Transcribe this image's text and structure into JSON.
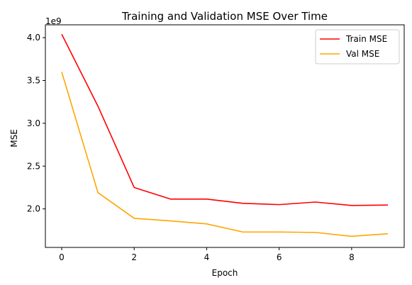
{
  "chart_data": {
    "type": "line",
    "title": "Training and Validation MSE Over Time",
    "xlabel": "Epoch",
    "ylabel": "MSE",
    "y_offset_text": "1e9",
    "x": [
      0,
      1,
      2,
      3,
      4,
      5,
      6,
      7,
      8,
      9
    ],
    "xlim": [
      -0.45,
      9.45
    ],
    "ylim": [
      1.55,
      4.15
    ],
    "xticks": [
      0,
      2,
      4,
      6,
      8
    ],
    "xtick_labels": [
      "0",
      "2",
      "4",
      "6",
      "8"
    ],
    "yticks": [
      2.0,
      2.5,
      3.0,
      3.5,
      4.0
    ],
    "ytick_labels": [
      "2.0",
      "2.5",
      "3.0",
      "3.5",
      "4.0"
    ],
    "grid": false,
    "legend_position": "top-right",
    "series": [
      {
        "name": "Train MSE",
        "color": "#ff0000",
        "values": [
          4.04,
          3.2,
          2.25,
          2.115,
          2.115,
          2.065,
          2.05,
          2.08,
          2.04,
          2.045
        ]
      },
      {
        "name": "Val MSE",
        "color": "#ffa500",
        "values": [
          3.6,
          2.19,
          1.89,
          1.86,
          1.825,
          1.73,
          1.73,
          1.725,
          1.68,
          1.71
        ]
      }
    ]
  }
}
